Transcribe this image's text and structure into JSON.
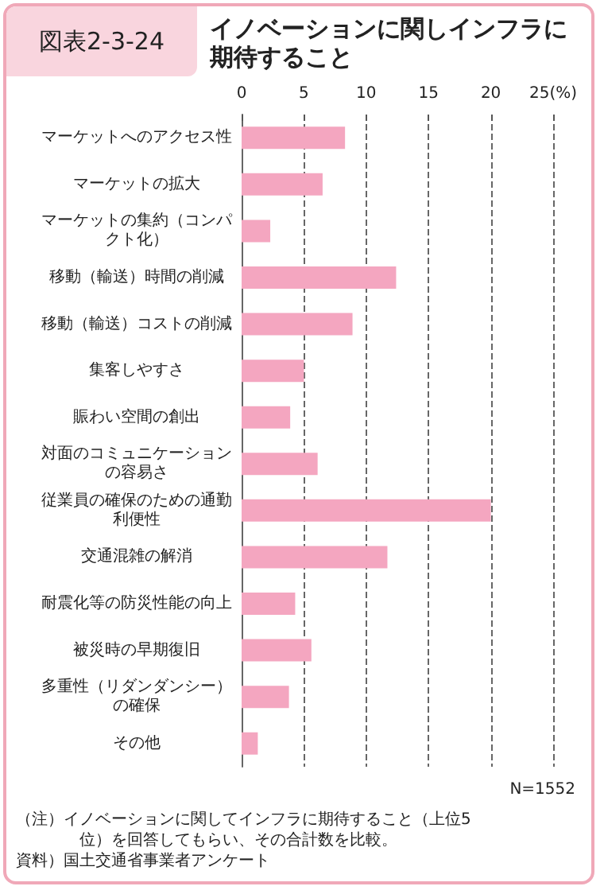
{
  "chart_data": {
    "type": "bar",
    "orientation": "horizontal",
    "title": "イノベーションに関しインフラに期待すること",
    "categories": [
      "マーケットへのアクセス性",
      "マーケットの拡大",
      "マーケットの集約（コンパクト化）",
      "移動（輸送）時間の削減",
      "移動（輸送）コストの削減",
      "集客しやすさ",
      "賑わい空間の創出",
      "対面のコミュニケーションの容易さ",
      "従業員の確保のための通勤利便性",
      "交通混雑の解消",
      "耐震化等の防災性能の向上",
      "被災時の早期復旧",
      "多重性（リダンダンシー）の確保",
      "その他"
    ],
    "values": [
      8.3,
      6.5,
      2.3,
      12.4,
      8.9,
      5.0,
      3.9,
      6.1,
      20.0,
      11.7,
      4.3,
      5.6,
      3.8,
      1.3
    ],
    "color": "#f4a6c0",
    "xlim": [
      0,
      25
    ],
    "xticks": [
      0,
      5,
      10,
      15,
      20,
      {
        "value": 25,
        "label": "25(%)"
      }
    ],
    "grid": "x",
    "annotations": [
      "図表2-3-24",
      "N=1552",
      "（注）イノベーションに関してインフラに期待すること（上位5位）を回答してもらい、その合計数を比較。",
      "資料）国土交通省事業者アンケート"
    ]
  }
}
